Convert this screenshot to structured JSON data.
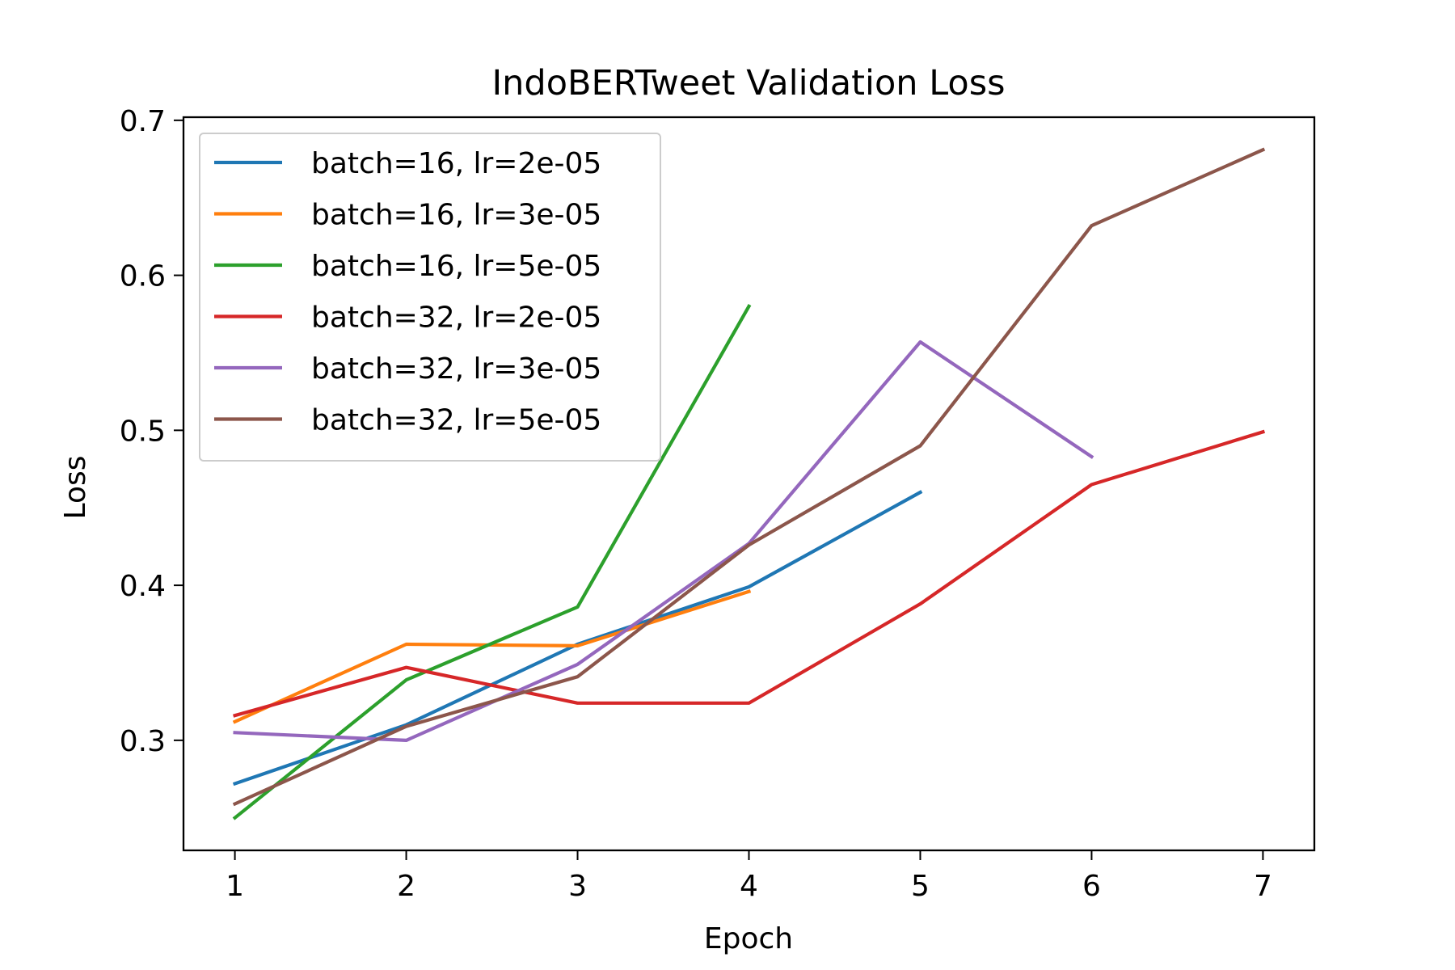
{
  "chart_data": {
    "type": "line",
    "title": "IndoBERTweet Validation Loss",
    "xlabel": "Epoch",
    "ylabel": "Loss",
    "xlim": [
      0.7,
      7.3
    ],
    "ylim": [
      0.229,
      0.702
    ],
    "xticks": [
      1,
      2,
      3,
      4,
      5,
      6,
      7
    ],
    "xtick_labels": [
      "1",
      "2",
      "3",
      "4",
      "5",
      "6",
      "7"
    ],
    "yticks": [
      0.3,
      0.4,
      0.5,
      0.6,
      0.7
    ],
    "ytick_labels": [
      "0.3",
      "0.4",
      "0.5",
      "0.6",
      "0.7"
    ],
    "grid": false,
    "legend_position": "top-left",
    "series": [
      {
        "name": "batch=16, lr=2e-05",
        "color": "#1f77b4",
        "x": [
          1,
          2,
          3,
          4,
          5
        ],
        "values": [
          0.272,
          0.31,
          0.362,
          0.399,
          0.46
        ]
      },
      {
        "name": "batch=16, lr=3e-05",
        "color": "#ff7f0e",
        "x": [
          1,
          2,
          3,
          4
        ],
        "values": [
          0.312,
          0.362,
          0.361,
          0.396
        ]
      },
      {
        "name": "batch=16, lr=5e-05",
        "color": "#2ca02c",
        "x": [
          1,
          2,
          3,
          4
        ],
        "values": [
          0.25,
          0.339,
          0.386,
          0.58
        ]
      },
      {
        "name": "batch=32, lr=2e-05",
        "color": "#d62728",
        "x": [
          1,
          2,
          3,
          4,
          5,
          6,
          7
        ],
        "values": [
          0.316,
          0.347,
          0.324,
          0.324,
          0.388,
          0.465,
          0.499
        ]
      },
      {
        "name": "batch=32, lr=3e-05",
        "color": "#9467bd",
        "x": [
          1,
          2,
          3,
          4,
          5,
          6
        ],
        "values": [
          0.305,
          0.3,
          0.349,
          0.427,
          0.557,
          0.483
        ]
      },
      {
        "name": "batch=32, lr=5e-05",
        "color": "#8c564b",
        "x": [
          1,
          2,
          3,
          4,
          5,
          6,
          7
        ],
        "values": [
          0.259,
          0.309,
          0.341,
          0.426,
          0.49,
          0.632,
          0.681
        ]
      }
    ]
  }
}
